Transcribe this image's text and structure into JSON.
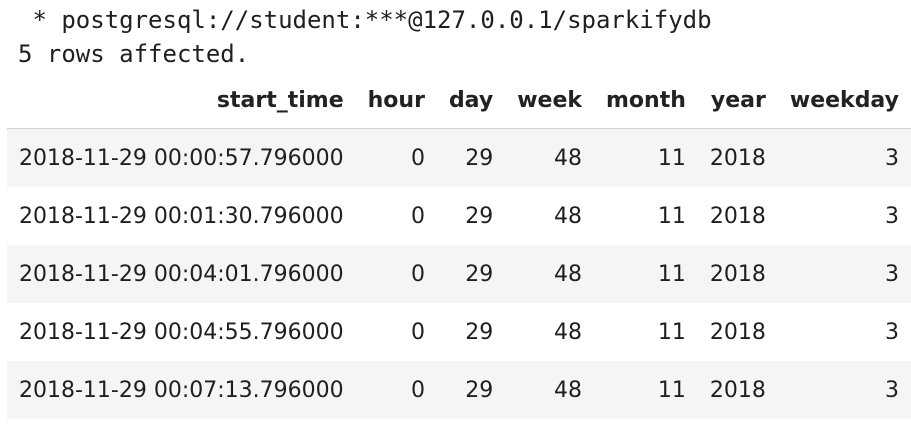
{
  "output": {
    "connection_line": " * postgresql://student:***@127.0.0.1/sparkifydb",
    "rows_affected": "5 rows affected."
  },
  "table": {
    "columns": [
      "start_time",
      "hour",
      "day",
      "week",
      "month",
      "year",
      "weekday"
    ],
    "rows": [
      [
        "2018-11-29 00:00:57.796000",
        "0",
        "29",
        "48",
        "11",
        "2018",
        "3"
      ],
      [
        "2018-11-29 00:01:30.796000",
        "0",
        "29",
        "48",
        "11",
        "2018",
        "3"
      ],
      [
        "2018-11-29 00:04:01.796000",
        "0",
        "29",
        "48",
        "11",
        "2018",
        "3"
      ],
      [
        "2018-11-29 00:04:55.796000",
        "0",
        "29",
        "48",
        "11",
        "2018",
        "3"
      ],
      [
        "2018-11-29 00:07:13.796000",
        "0",
        "29",
        "48",
        "11",
        "2018",
        "3"
      ]
    ]
  }
}
